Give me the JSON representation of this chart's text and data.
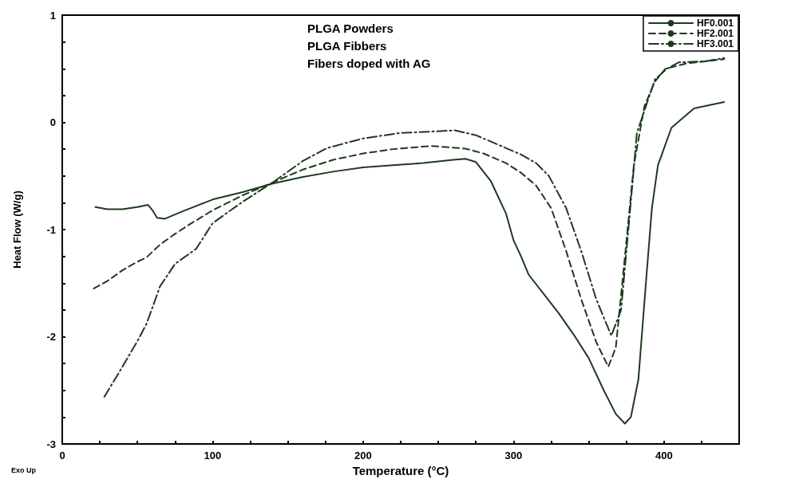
{
  "chart_data": {
    "type": "line",
    "xlabel": "Temperature (°C)",
    "ylabel": "Heat Flow (W/g)",
    "annotations": [
      "PLGA Powders",
      "PLGA Fibbers",
      "Fibers doped with AG",
      "Exo Up"
    ],
    "xlim": [
      0,
      450
    ],
    "ylim": [
      -3,
      1
    ],
    "xticks": [
      0,
      {
        "value": 25,
        "label": null
      },
      {
        "value": 50,
        "label": null
      },
      {
        "value": 75,
        "label": null
      },
      100,
      {
        "value": 125,
        "label": null
      },
      {
        "value": 150,
        "label": null
      },
      {
        "value": 175,
        "label": null
      },
      200,
      {
        "value": 225,
        "label": null
      },
      {
        "value": 250,
        "label": null
      },
      {
        "value": 275,
        "label": null
      },
      300,
      {
        "value": 325,
        "label": null
      },
      {
        "value": 350,
        "label": null
      },
      {
        "value": 375,
        "label": null
      },
      400,
      {
        "value": 425,
        "label": null
      }
    ],
    "yticks": [
      -3,
      {
        "value": -2.75,
        "label": null
      },
      {
        "value": -2.5,
        "label": null
      },
      {
        "value": -2.25,
        "label": null
      },
      -2,
      {
        "value": -1.75,
        "label": null
      },
      {
        "value": -1.5,
        "label": null
      },
      {
        "value": -1.25,
        "label": null
      },
      -1,
      {
        "value": -0.75,
        "label": null
      },
      {
        "value": -0.5,
        "label": null
      },
      {
        "value": -0.25,
        "label": null
      },
      0,
      {
        "value": 0.25,
        "label": null
      },
      {
        "value": 0.5,
        "label": null
      },
      {
        "value": 0.75,
        "label": null
      },
      1
    ],
    "grid": false,
    "legend": "top right",
    "marker": "none",
    "series": [
      {
        "name": "HF0.001",
        "color": "#1e3a1e",
        "line_style": "solid",
        "x": [
          22,
          30,
          40,
          50,
          57,
          60,
          63,
          68,
          80,
          100,
          120,
          140,
          160,
          180,
          200,
          220,
          240,
          260,
          268,
          275,
          285,
          295,
          300,
          305,
          310,
          320,
          330,
          340,
          350,
          360,
          368,
          374,
          378,
          383,
          388,
          392,
          396,
          405,
          420,
          440
        ],
        "values": [
          -0.79,
          -0.81,
          -0.81,
          -0.79,
          -0.77,
          -0.82,
          -0.89,
          -0.9,
          -0.83,
          -0.72,
          -0.65,
          -0.57,
          -0.51,
          -0.46,
          -0.42,
          -0.4,
          -0.38,
          -0.35,
          -0.34,
          -0.37,
          -0.55,
          -0.85,
          -1.1,
          -1.25,
          -1.42,
          -1.6,
          -1.78,
          -1.98,
          -2.2,
          -2.5,
          -2.72,
          -2.81,
          -2.75,
          -2.4,
          -1.5,
          -0.8,
          -0.4,
          -0.05,
          0.13,
          0.19
        ]
      },
      {
        "name": "HF2.001",
        "color": "#1e3a1e",
        "line_style": "dashed",
        "x": [
          21,
          30,
          40,
          50,
          56,
          65,
          75,
          86,
          100,
          120,
          140,
          160,
          180,
          200,
          220,
          245,
          268,
          280,
          295,
          305,
          315,
          325,
          335,
          345,
          355,
          363,
          368,
          374,
          380,
          387,
          394,
          401,
          415,
          428,
          440
        ],
        "values": [
          -1.55,
          -1.48,
          -1.38,
          -1.3,
          -1.26,
          -1.14,
          -1.04,
          -0.94,
          -0.82,
          -0.68,
          -0.56,
          -0.44,
          -0.35,
          -0.29,
          -0.25,
          -0.22,
          -0.245,
          -0.29,
          -0.38,
          -0.47,
          -0.59,
          -0.8,
          -1.2,
          -1.65,
          -2.05,
          -2.28,
          -2.1,
          -1.26,
          -0.4,
          0.15,
          0.38,
          0.5,
          0.55,
          0.57,
          0.59
        ]
      },
      {
        "name": "HF3.001",
        "color": "#1e3a1e",
        "line_style": "dashdot",
        "x": [
          28,
          40,
          50,
          56,
          65,
          75,
          89,
          100,
          120,
          140,
          160,
          176,
          200,
          224,
          261,
          275,
          290,
          305,
          315,
          323.5,
          335,
          345,
          355,
          365,
          371.5,
          377,
          382,
          388,
          394,
          402,
          410,
          428,
          440
        ],
        "values": [
          -2.56,
          -2.28,
          -2.04,
          -1.88,
          -1.53,
          -1.32,
          -1.18,
          -0.94,
          -0.74,
          -0.56,
          -0.36,
          -0.24,
          -0.15,
          -0.1,
          -0.075,
          -0.12,
          -0.21,
          -0.3,
          -0.38,
          -0.5,
          -0.8,
          -1.2,
          -1.65,
          -1.99,
          -1.75,
          -0.9,
          -0.1,
          0.15,
          0.4,
          0.5,
          0.56,
          0.57,
          0.6
        ]
      }
    ]
  }
}
